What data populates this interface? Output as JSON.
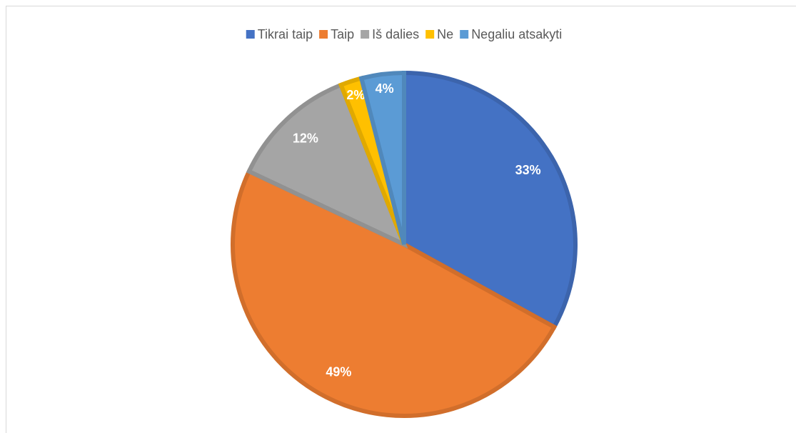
{
  "chart_data": {
    "type": "pie",
    "categories": [
      "Tikrai taip",
      "Taip",
      "Iš dalies",
      "Ne",
      "Negaliu atsakyti"
    ],
    "values": [
      33,
      49,
      12,
      2,
      4
    ],
    "value_labels": [
      "33%",
      "49%",
      "12%",
      "2%",
      "4%"
    ],
    "colors": [
      "#4472c4",
      "#ed7d31",
      "#a5a5a5",
      "#ffc000",
      "#5b9bd5"
    ],
    "legend": "top"
  }
}
